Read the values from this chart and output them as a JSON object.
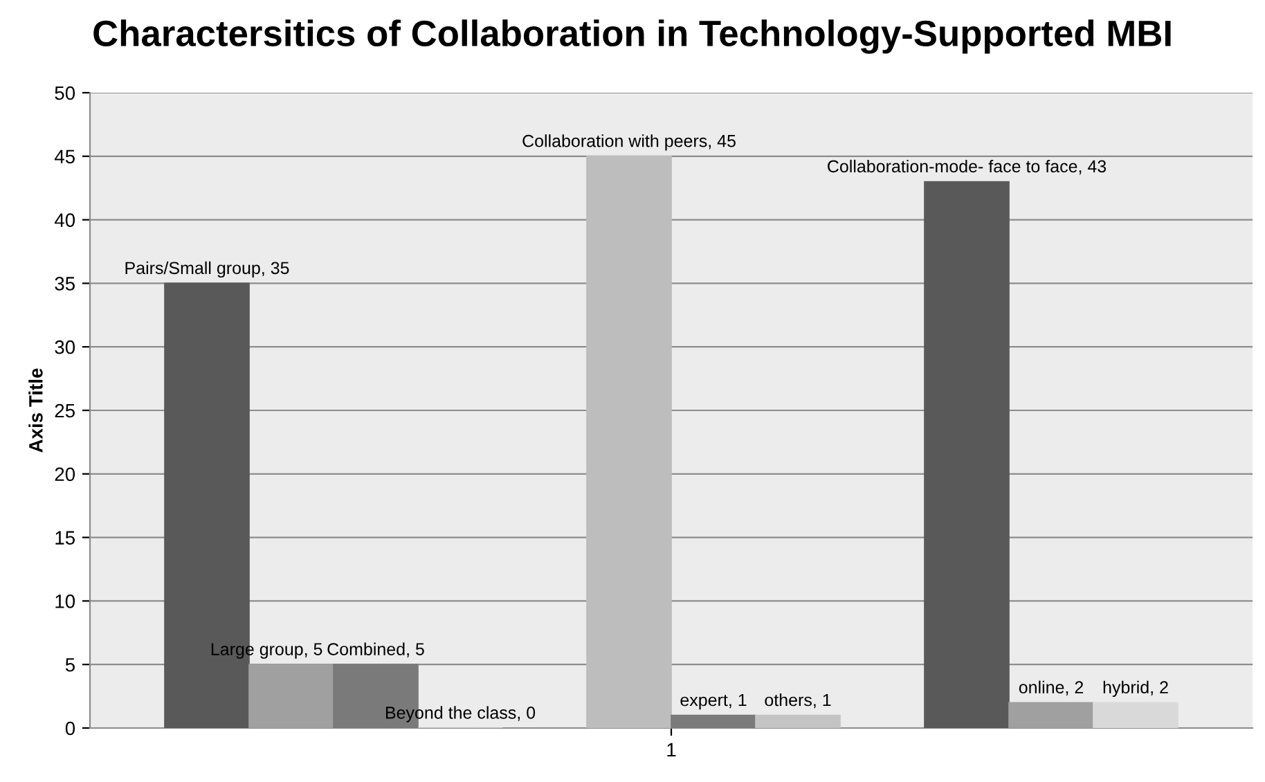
{
  "chart_data": {
    "type": "bar",
    "title": "Charactersitics of Collaboration in Technology-Supported MBI",
    "ylabel": "Axis Title",
    "categories": [
      "1"
    ],
    "series": [
      {
        "color": "#595959",
        "values": [
          35
        ],
        "value_labels": [
          "Pairs/Small group, 35"
        ]
      },
      {
        "color": "#a0a0a0",
        "values": [
          5
        ],
        "value_labels": [
          "Large group, 5"
        ]
      },
      {
        "color": "#7a7a7a",
        "values": [
          5
        ],
        "value_labels": [
          "Combined, 5"
        ]
      },
      {
        "color": "#d9d9d9",
        "values": [
          0
        ],
        "value_labels": [
          "Beyond the class, 0"
        ]
      },
      {
        "values": [
          null
        ]
      },
      {
        "color": "#bdbdbd",
        "values": [
          45
        ],
        "value_labels": [
          "Collaboration with peers, 45"
        ]
      },
      {
        "color": "#7a7a7a",
        "values": [
          1
        ],
        "value_labels": [
          "expert, 1"
        ]
      },
      {
        "color": "#c4c4c4",
        "values": [
          1
        ],
        "value_labels": [
          "others, 1"
        ]
      },
      {
        "values": [
          null
        ]
      },
      {
        "color": "#595959",
        "values": [
          43
        ],
        "value_labels": [
          "Collaboration-mode- face to face, 43"
        ]
      },
      {
        "color": "#a0a0a0",
        "values": [
          2
        ],
        "value_labels": [
          "online, 2"
        ]
      },
      {
        "color": "#d9d9d9",
        "values": [
          2
        ],
        "value_labels": [
          "hybrid, 2"
        ]
      }
    ],
    "ylim": [
      0,
      50
    ],
    "yticks": [
      0,
      5,
      10,
      15,
      20,
      25,
      30,
      35,
      40,
      45,
      50
    ],
    "grid": "y",
    "legend": false
  }
}
